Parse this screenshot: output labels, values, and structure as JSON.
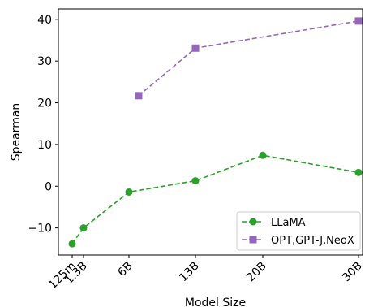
{
  "chart_data": {
    "type": "line",
    "xlabel": "Model Size",
    "ylabel": "Spearman",
    "ylim": [
      -16.5,
      42.5
    ],
    "yticks": [
      -10,
      0,
      10,
      20,
      30,
      40
    ],
    "x_tick_labels": [
      "125m",
      "1.3B",
      "6B",
      "13B",
      "20B",
      "30B"
    ],
    "grid": false,
    "legend_position": "bottom-right",
    "series": [
      {
        "name": "LLaMA",
        "color": "#2ca02c",
        "marker": "circle",
        "linestyle": "dashed",
        "points": [
          {
            "x": "125m",
            "y": -13.8
          },
          {
            "x": "1.3B",
            "y": -10.0
          },
          {
            "x": "6B",
            "y": -1.4
          },
          {
            "x": "13B",
            "y": 1.3
          },
          {
            "x": "20B",
            "y": 7.4
          },
          {
            "x": "30B",
            "y": 3.3
          }
        ]
      },
      {
        "name": "OPT,GPT-J,NeoX",
        "color": "#9467bd",
        "marker": "square",
        "linestyle": "dashed",
        "points": [
          {
            "x": "6.7B",
            "y": 21.7
          },
          {
            "x": "13B",
            "y": 33.1
          },
          {
            "x": "30B",
            "y": 39.6
          }
        ]
      }
    ]
  }
}
